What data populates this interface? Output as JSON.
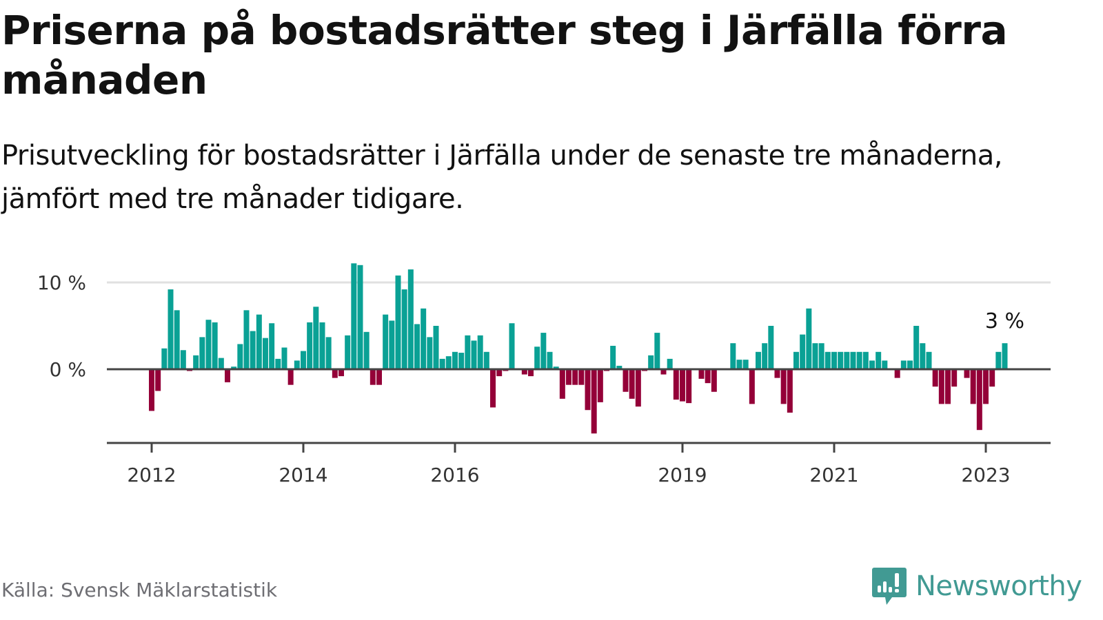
{
  "header": {
    "title": "Priserna på bostadsrätter steg i Järfälla förra månaden",
    "subtitle": "Prisutveckling för bostadsrätter i Järfälla under de senaste tre månaderna, jämfört med tre månader tidigare."
  },
  "footer": {
    "source": "Källa: Svensk Mäklarstatistik",
    "brand": "Newsworthy"
  },
  "colors": {
    "positive": "#0aa195",
    "negative": "#940038",
    "gridline": "#e0e0e0",
    "axis": "#444444",
    "brand": "#419a93"
  },
  "chart_data": {
    "type": "bar",
    "title": "Priserna på bostadsrätter steg i Järfälla förra månaden",
    "subtitle": "Prisutveckling för bostadsrätter i Järfälla under de senaste tre månaderna, jämfört med tre månader tidigare.",
    "xlabel": "",
    "ylabel": "",
    "unit": "%",
    "start": "2012-01",
    "end": "2023-04",
    "frequency": "monthly",
    "ylim": [
      -8.5,
      12.5
    ],
    "y_ticks": [
      {
        "value": 0,
        "label": "0 %"
      },
      {
        "value": 10,
        "label": "10 %"
      }
    ],
    "x_ticks": [
      {
        "year": 2012,
        "label": "2012"
      },
      {
        "year": 2014,
        "label": "2014"
      },
      {
        "year": 2016,
        "label": "2016"
      },
      {
        "year": 2019,
        "label": "2019"
      },
      {
        "year": 2021,
        "label": "2021"
      },
      {
        "year": 2023,
        "label": "2023"
      }
    ],
    "grid": true,
    "annotation": {
      "label": "3 %",
      "target": "last"
    },
    "values": [
      -4.8,
      -2.5,
      2.4,
      9.2,
      6.8,
      2.2,
      -0.2,
      1.6,
      3.7,
      5.7,
      5.4,
      1.3,
      -1.5,
      0.3,
      2.9,
      6.8,
      4.4,
      6.3,
      3.6,
      5.3,
      1.2,
      2.5,
      -1.8,
      1.0,
      2.1,
      5.4,
      7.2,
      5.4,
      3.7,
      -1.0,
      -0.8,
      3.9,
      12.2,
      12.0,
      4.3,
      -1.8,
      -1.8,
      6.3,
      5.6,
      10.8,
      9.2,
      11.5,
      5.2,
      7.0,
      3.7,
      5.0,
      1.2,
      1.5,
      2.0,
      1.9,
      3.9,
      3.3,
      3.9,
      2.0,
      -4.4,
      -0.8,
      -0.2,
      5.3,
      0,
      -0.6,
      -0.8,
      2.6,
      4.2,
      2.0,
      0.3,
      -3.4,
      -1.8,
      -1.8,
      -1.8,
      -4.7,
      -7.4,
      -3.8,
      -0.2,
      2.7,
      0.4,
      -2.6,
      -3.4,
      -4.3,
      -0.2,
      1.6,
      4.2,
      -0.6,
      1.2,
      -3.5,
      -3.7,
      -3.9,
      0,
      -1.1,
      -1.6,
      -2.6,
      0,
      0,
      3.0,
      1.1,
      1.1,
      -4.0,
      2.0,
      3.0,
      5.0,
      -1.0,
      -4.0,
      -5.0,
      2.0,
      4.0,
      7.0,
      3.0,
      3.0,
      2.0,
      2.0,
      2.0,
      2.0,
      2.0,
      2.0,
      2.0,
      1.0,
      2.0,
      1.0,
      0,
      -1.0,
      1.0,
      1.0,
      5.0,
      3.0,
      2.0,
      -2.0,
      -4.0,
      -4.0,
      -2.0,
      0,
      -1.0,
      -4.0,
      -7.0,
      -4.0,
      -2.0,
      2.0,
      3.0
    ]
  }
}
